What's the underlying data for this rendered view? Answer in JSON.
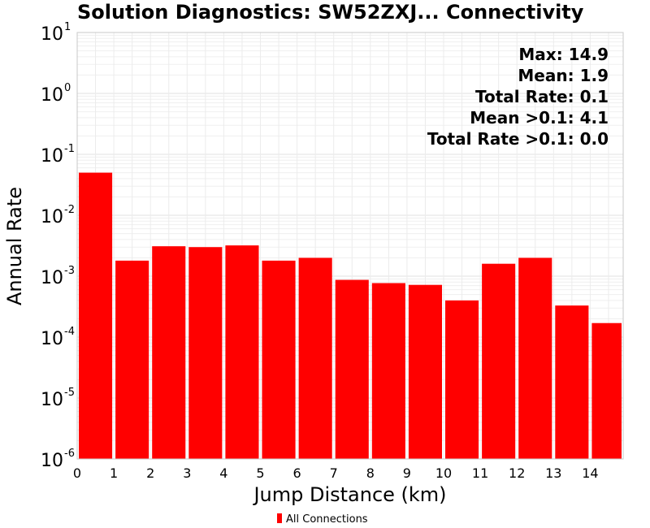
{
  "chart_data": {
    "type": "bar",
    "title": "Solution Diagnostics: SW52ZXJ... Connectivity",
    "xlabel": "Jump Distance (km)",
    "ylabel": "Annual Rate",
    "yscale": "log",
    "ylim": [
      1e-06,
      10
    ],
    "xlim": [
      0,
      14.9
    ],
    "y_ticks": [
      {
        "base": "10",
        "exp": "1",
        "value": 10
      },
      {
        "base": "10",
        "exp": "0",
        "value": 1
      },
      {
        "base": "10",
        "exp": "-1",
        "value": 0.1
      },
      {
        "base": "10",
        "exp": "-2",
        "value": 0.01
      },
      {
        "base": "10",
        "exp": "-3",
        "value": 0.001
      },
      {
        "base": "10",
        "exp": "-4",
        "value": 0.0001
      },
      {
        "base": "10",
        "exp": "-5",
        "value": 1e-05
      },
      {
        "base": "10",
        "exp": "-6",
        "value": 1e-06
      }
    ],
    "x_ticks": [
      0,
      1,
      2,
      3,
      4,
      5,
      6,
      7,
      8,
      9,
      10,
      11,
      12,
      13,
      14
    ],
    "grid": true,
    "bin_width": 1,
    "bins": [
      0,
      1,
      2,
      3,
      4,
      5,
      6,
      7,
      8,
      9,
      10,
      11,
      12,
      13,
      14
    ],
    "series": [
      {
        "name": "All Connections",
        "color": "#ff0000",
        "values": [
          0.05,
          0.0018,
          0.0031,
          0.003,
          0.0032,
          0.0018,
          0.002,
          0.00087,
          0.00077,
          0.00072,
          0.0004,
          0.0016,
          0.002,
          0.00033,
          0.00017
        ]
      }
    ],
    "annotations": [
      "Max: 14.9",
      "Mean: 1.9",
      "Total Rate: 0.1",
      "Mean >0.1: 4.1",
      "Total Rate >0.1: 0.0"
    ],
    "legend": {
      "position": "bottom-center",
      "entries": [
        "All Connections"
      ]
    }
  }
}
